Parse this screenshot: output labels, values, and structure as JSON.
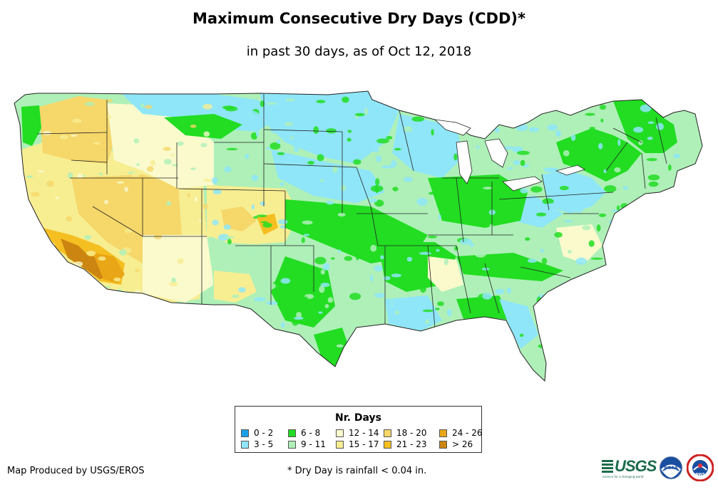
{
  "title": "Maximum Consecutive Dry Days (CDD)*",
  "subtitle": "in past 30 days, as of Oct 12, 2018",
  "legend": {
    "title": "Nr. Days",
    "items": [
      {
        "label": "0 - 2",
        "color": "#1aa0e8"
      },
      {
        "label": "3 - 5",
        "color": "#8fe6f8"
      },
      {
        "label": "6 - 8",
        "color": "#22dd22"
      },
      {
        "label": "9 - 11",
        "color": "#aef0b8"
      },
      {
        "label": "12 - 14",
        "color": "#fafacd"
      },
      {
        "label": "15 - 17",
        "color": "#f7ee92"
      },
      {
        "label": "18 - 20",
        "color": "#f6d76a"
      },
      {
        "label": "21 - 23",
        "color": "#f5bf22"
      },
      {
        "label": "24 - 26",
        "color": "#e9a616"
      },
      {
        "label": "> 26",
        "color": "#cc8510"
      }
    ]
  },
  "credit": "Map Produced by USGS/EROS",
  "footnote": "* Dry Day is rainfall < 0.04 in.",
  "logos": {
    "usgs": "USGS",
    "usgs_tagline": "science for a changing world",
    "noaa": "NOAA",
    "nws": "NWS"
  }
}
